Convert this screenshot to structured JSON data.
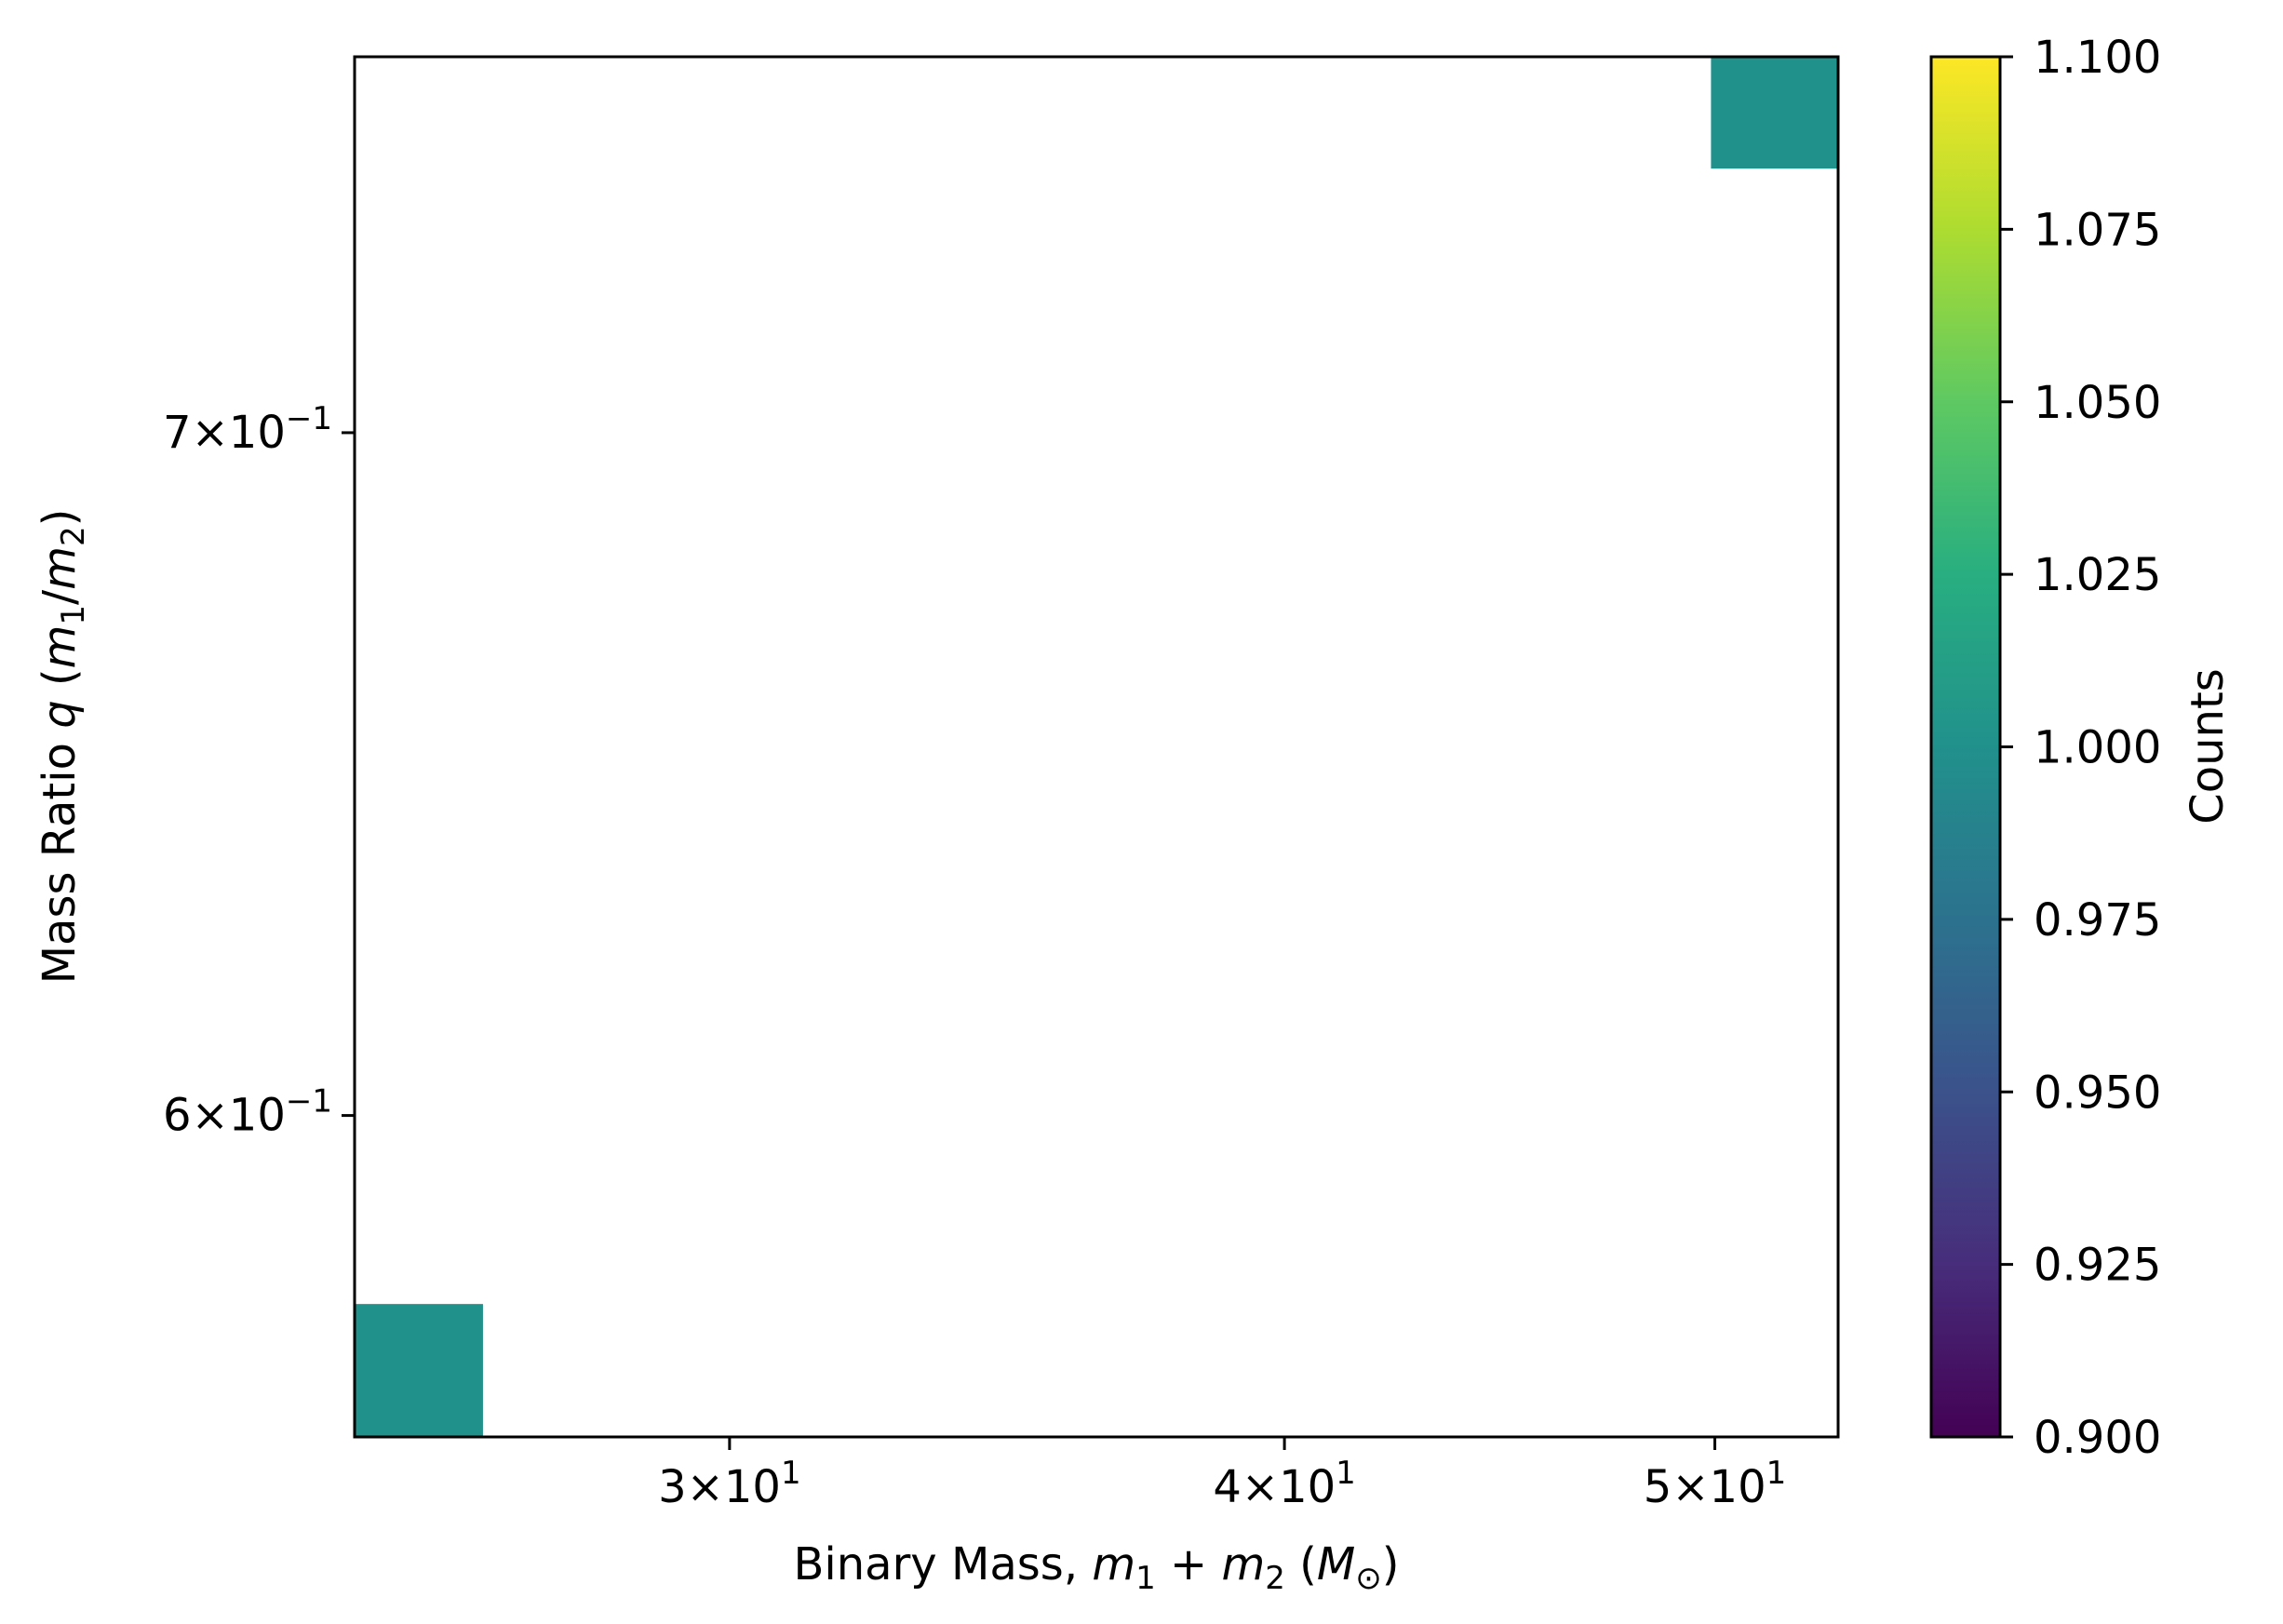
{
  "chart_data": {
    "type": "heatmap",
    "xlabel": "Binary Mass, m1 + m2 (M⊙)",
    "ylabel": "Mass Ratio q (m1/m2)",
    "colorbar_label": "Counts",
    "x_scale": "log",
    "y_scale": "log",
    "xlim": [
      24.7,
      53.3
    ],
    "ylim": [
      0.558,
      0.762
    ],
    "x_ticks": [
      {
        "value": 30,
        "label": "3×10",
        "exp": "1"
      },
      {
        "value": 40,
        "label": "4×10",
        "exp": "1"
      },
      {
        "value": 50,
        "label": "5×10",
        "exp": "1"
      }
    ],
    "y_ticks": [
      {
        "value": 0.6,
        "label": "6×10",
        "exp": "−1"
      },
      {
        "value": 0.7,
        "label": "7×10",
        "exp": "−1"
      }
    ],
    "cells": [
      {
        "x0": 24.7,
        "x1": 26.4,
        "y0": 0.558,
        "y1": 0.575,
        "count": 1.0
      },
      {
        "x0": 49.9,
        "x1": 53.3,
        "y0": 0.743,
        "y1": 0.762,
        "count": 1.0
      }
    ],
    "colorbar": {
      "min": 0.9,
      "max": 1.1,
      "colormap": "viridis",
      "ticks": [
        "0.900",
        "0.925",
        "0.950",
        "0.975",
        "1.000",
        "1.025",
        "1.050",
        "1.075",
        "1.100"
      ]
    },
    "colors": {
      "cell": "#21918c"
    }
  }
}
